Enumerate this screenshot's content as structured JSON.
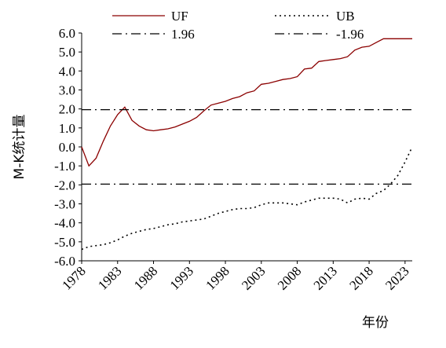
{
  "chart_data": {
    "type": "line",
    "title": "",
    "xlabel": "年份",
    "ylabel": "M-K统计量",
    "x_tick_labels": [
      "1978",
      "1983",
      "1988",
      "1993",
      "1998",
      "2003",
      "2008",
      "2013",
      "2018",
      "2023"
    ],
    "y_tick_labels": [
      "6.0",
      "5.0",
      "4.0",
      "3.0",
      "2.0",
      "1.0",
      "0.0",
      "-1.0",
      "-2.0",
      "-3.0",
      "-4.0",
      "-5.0",
      "-6.0"
    ],
    "xlim": [
      1978,
      2024
    ],
    "ylim": [
      -6,
      6
    ],
    "grid": false,
    "legend_position": "top",
    "colors": {
      "uf": "#8b0000",
      "ub": "#000000",
      "ref": "#000000"
    },
    "x": [
      1978,
      1979,
      1980,
      1981,
      1982,
      1983,
      1984,
      1985,
      1986,
      1987,
      1988,
      1989,
      1990,
      1991,
      1992,
      1993,
      1994,
      1995,
      1996,
      1997,
      1998,
      1999,
      2000,
      2001,
      2002,
      2003,
      2004,
      2005,
      2006,
      2007,
      2008,
      2009,
      2010,
      2011,
      2012,
      2013,
      2014,
      2015,
      2016,
      2017,
      2018,
      2019,
      2020,
      2021,
      2022,
      2023,
      2024
    ],
    "series": [
      {
        "name": "UF",
        "style": "solid",
        "values": [
          0.0,
          -1.0,
          -0.6,
          0.3,
          1.1,
          1.7,
          2.1,
          1.4,
          1.1,
          0.9,
          0.85,
          0.9,
          0.95,
          1.05,
          1.2,
          1.35,
          1.55,
          1.9,
          2.2,
          2.3,
          2.4,
          2.55,
          2.65,
          2.85,
          2.95,
          3.3,
          3.35,
          3.45,
          3.55,
          3.6,
          3.7,
          4.1,
          4.15,
          4.5,
          4.55,
          4.6,
          4.65,
          4.75,
          5.1,
          5.25,
          5.3,
          5.5,
          5.7,
          5.7,
          5.7,
          5.7,
          5.7
        ]
      },
      {
        "name": "UB",
        "style": "dotted",
        "values": [
          -5.4,
          -5.25,
          -5.2,
          -5.15,
          -5.05,
          -4.9,
          -4.7,
          -4.55,
          -4.45,
          -4.35,
          -4.3,
          -4.2,
          -4.1,
          -4.05,
          -3.95,
          -3.9,
          -3.85,
          -3.8,
          -3.65,
          -3.5,
          -3.4,
          -3.3,
          -3.25,
          -3.25,
          -3.2,
          -3.05,
          -2.95,
          -2.95,
          -2.95,
          -3.0,
          -3.05,
          -2.9,
          -2.8,
          -2.7,
          -2.7,
          -2.7,
          -2.75,
          -2.95,
          -2.75,
          -2.7,
          -2.75,
          -2.45,
          -2.3,
          -1.95,
          -1.5,
          -0.8,
          0.0
        ]
      },
      {
        "name": "1.96",
        "style": "dashdot",
        "constant": 1.96
      },
      {
        "name": "-1.96",
        "style": "dashdot",
        "constant": -1.96
      }
    ]
  }
}
